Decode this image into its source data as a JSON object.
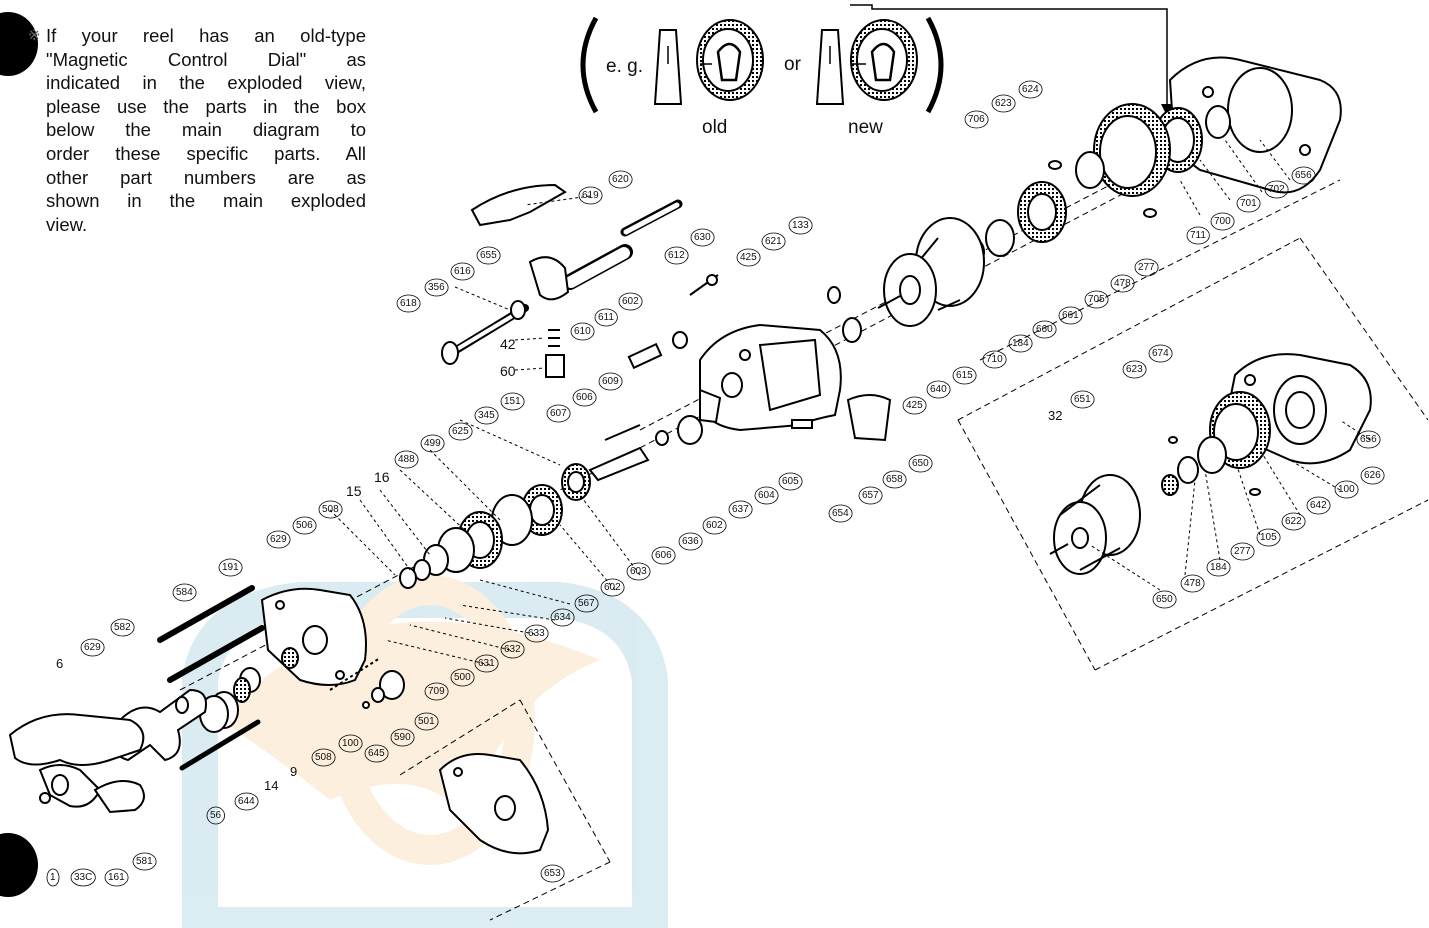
{
  "note": {
    "marker": "※",
    "lines": [
      "If your reel has an old-type",
      "\"Magnetic Control Dial\" as",
      "indicated in the exploded view,",
      "please use the parts in the box",
      "below the main diagram to",
      "order these specific parts. All",
      "other part numbers are as",
      "shown in the main exploded",
      "view."
    ]
  },
  "dial_example": {
    "eg": "e. g.",
    "or": "or",
    "old": "old",
    "new": "new"
  },
  "parts": {
    "upper_right": [
      "624",
      "623",
      "706",
      "656",
      "702",
      "701",
      "700",
      "711",
      "133",
      "621",
      "425",
      "277",
      "478",
      "705",
      "661",
      "660",
      "184",
      "710",
      "615",
      "640",
      "425"
    ],
    "upper_middle": [
      "620",
      "619",
      "630",
      "612",
      "655",
      "616",
      "356",
      "618",
      "42",
      "60",
      "610",
      "611",
      "602",
      "609",
      "606",
      "607",
      "151",
      "345",
      "625"
    ],
    "center": [
      "605",
      "604",
      "637",
      "602",
      "636",
      "606",
      "603",
      "602",
      "650",
      "657",
      "654",
      "658",
      "488",
      "499",
      "16",
      "15",
      "508",
      "506",
      "629",
      "567",
      "634",
      "633",
      "632",
      "631",
      "500"
    ],
    "lower_left": [
      "191",
      "584",
      "582",
      "629",
      "6",
      "709",
      "501",
      "590",
      "645",
      "508",
      "100",
      "14",
      "9",
      "644",
      "56",
      "1",
      "33C",
      "161",
      "581",
      "653"
    ],
    "alt_box": [
      "674",
      "623",
      "651",
      "32",
      "656",
      "626",
      "100",
      "642",
      "622",
      "105",
      "277",
      "184",
      "478",
      "650"
    ]
  }
}
